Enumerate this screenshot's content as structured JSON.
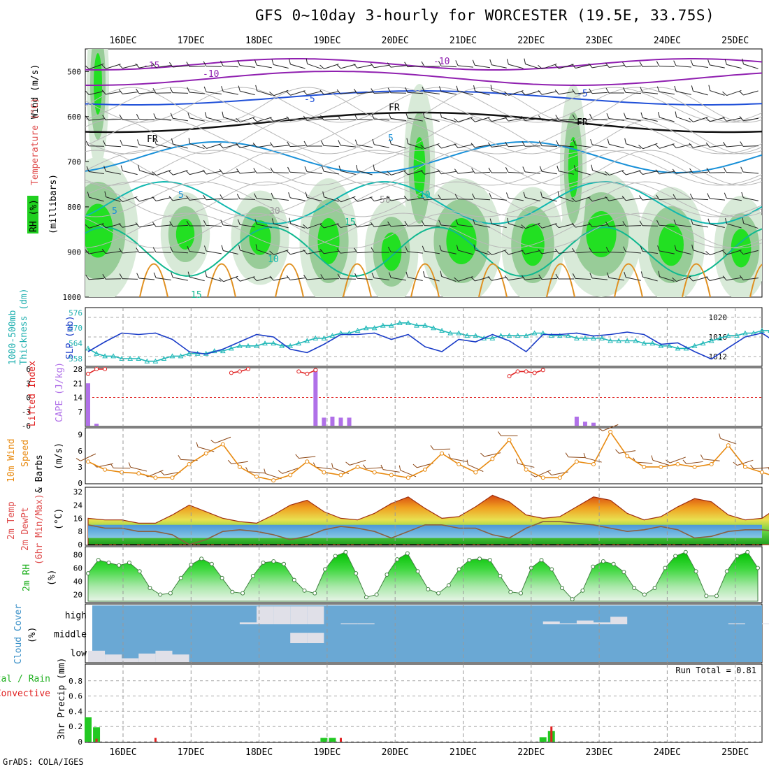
{
  "title": "GFS 0~10day 3-hourly for WORCESTER (19.5E, 33.75S)",
  "credit": "GrADS: COLA/IGES",
  "dates": [
    "16DEC",
    "17DEC",
    "18DEC",
    "19DEC",
    "20DEC",
    "21DEC",
    "22DEC",
    "23DEC",
    "24DEC",
    "25DEC"
  ],
  "colors": {
    "rh": "#00e000",
    "temp": "#e07020",
    "slp": "#1a3cc8",
    "thick": "#20b8b8",
    "cape": "#b070e8",
    "li": "#e02020",
    "wind": "#e88a10",
    "precip_rain": "#22c822",
    "precip_conv": "#e02020",
    "cloud_bg": "#6aa8d4"
  },
  "panels": {
    "upper": {
      "wind_label": "Wind (m/s)",
      "temp_label": "Temperature (°C)",
      "rh_label": "RH (%)",
      "unit_label": "(millibars)",
      "levels": [
        "500",
        "600",
        "700",
        "800",
        "900",
        "1000"
      ],
      "contour_labels": [
        "-15",
        "-10",
        "-10",
        "-5",
        "-5",
        "FR",
        "FR",
        "FR",
        "5",
        "5",
        "5",
        "10",
        "10",
        "15",
        "15",
        "30",
        "50"
      ]
    },
    "slp": {
      "label1": "1000-500mb",
      "label2": "Thickness (dm)",
      "label3": "SLP (mb)",
      "left_ticks": [
        "576",
        "570",
        "564",
        "558"
      ],
      "right_ticks": [
        "1020",
        "1016",
        "1012"
      ]
    },
    "cape": {
      "label1": "Lifted Index",
      "label2": "CAPE (J/kg)",
      "li_ticks": [
        "-6",
        "-3",
        "0",
        "3",
        "6"
      ],
      "cape_ticks": [
        "28",
        "21",
        "14",
        "7"
      ]
    },
    "wind10": {
      "label1": "10m Wind",
      "label2": "Speed",
      "label3": "& Barbs",
      "unit": "(m/s)",
      "ticks": [
        "9",
        "6",
        "3",
        "0"
      ]
    },
    "temp2m": {
      "label1": "2m Temp",
      "label2": "2m DewPt",
      "label3": "(6hr Min/Max)",
      "unit": "(°C)",
      "ticks": [
        "32",
        "24",
        "16",
        "8",
        "0"
      ]
    },
    "rh2m": {
      "label": "2m RH",
      "unit": "(%)",
      "ticks": [
        "80",
        "60",
        "40",
        "20"
      ]
    },
    "cloud": {
      "label": "Cloud Cover",
      "unit": "(%)",
      "levels": [
        "high",
        "middle",
        "low"
      ]
    },
    "precip": {
      "label1": "Total / Rain",
      "label2": "Convective",
      "label3": "3hr Precip (mm)",
      "ticks": [
        "0.8",
        "0.6",
        "0.4",
        "0.2",
        "0"
      ],
      "run_total": "Run Total = 0.81"
    }
  },
  "chart_data": [
    {
      "type": "line",
      "title": "SLP (mb)",
      "x_unit": "forecast hour",
      "x_start": 0,
      "x_step": 6,
      "series": [
        {
          "name": "SLP (mb)",
          "values": [
            1013,
            1015,
            1016.8,
            1016.5,
            1016.8,
            1015.5,
            1013,
            1012.5,
            1013.5,
            1015,
            1016.5,
            1016,
            1013.5,
            1012.8,
            1014.5,
            1016.5,
            1016.5,
            1016.8,
            1015.5,
            1016.5,
            1014,
            1013,
            1015.5,
            1015,
            1016.5,
            1015.2,
            1013,
            1016.5,
            1016.5,
            1016.8,
            1016.2,
            1016.5,
            1017,
            1016.5,
            1014.5,
            1014.8,
            1013,
            1011.5,
            1013.8,
            1016,
            1016.8,
            1014.5,
            1013.2,
            1015.5,
            1017,
            1017,
            1019.5,
            1021.5,
            1021,
            1021.5,
            1020.5,
            1019,
            1016.5,
            1017.5,
            1015.5,
            1013,
            1013.2
          ]
        }
      ],
      "ylim": [
        1010,
        1022
      ]
    },
    {
      "type": "line",
      "title": "1000-500mb Thickness (dm)",
      "x_unit": "forecast hour",
      "x_start": 0,
      "x_step": 3,
      "series": [
        {
          "name": "Thickness (dm)",
          "values": [
            562,
            560,
            559,
            559,
            558,
            558,
            558,
            557,
            557,
            558,
            559,
            559,
            560,
            560,
            560,
            561,
            561,
            562,
            563,
            563,
            563,
            564,
            564,
            563,
            563,
            564,
            565,
            566,
            566,
            567,
            568,
            568,
            569,
            570,
            570,
            571,
            571,
            572,
            572,
            571,
            571,
            570,
            569,
            568,
            568,
            567,
            567,
            566,
            566,
            567,
            567,
            567,
            567,
            568,
            568,
            567,
            567,
            567,
            566,
            566,
            566,
            566,
            565,
            565,
            565,
            565,
            564,
            564,
            563,
            563,
            562,
            562,
            563,
            564,
            565,
            566,
            567,
            567,
            568,
            568,
            569,
            569,
            570,
            570,
            571,
            571,
            572,
            573,
            573,
            572,
            572,
            572,
            572,
            573
          ]
        }
      ],
      "ylim": [
        555,
        578
      ]
    },
    {
      "type": "bar",
      "title": "CAPE (J/kg)",
      "x_unit": "forecast hour",
      "x": [
        0,
        3,
        33,
        81,
        84,
        87,
        90,
        93,
        174,
        177,
        180
      ],
      "values": [
        21,
        1,
        0,
        28,
        4,
        4.5,
        4,
        4,
        4.5,
        2,
        1.5
      ],
      "ylim": [
        0,
        28
      ]
    },
    {
      "type": "line",
      "title": "Lifted Index",
      "x_unit": "forecast hour",
      "x": [
        0,
        3,
        6,
        51,
        54,
        57,
        75,
        78,
        81,
        150,
        153,
        156,
        159,
        162
      ],
      "values": [
        5,
        6,
        6,
        5.2,
        5.5,
        6,
        5.5,
        5,
        5.8,
        4.5,
        5.5,
        5.5,
        5.2,
        5.8
      ],
      "ylim": [
        6,
        -6
      ]
    },
    {
      "type": "line",
      "title": "10m Wind Speed (m/s)",
      "x_unit": "forecast hour",
      "x_start": 0,
      "x_step": 6,
      "series": [
        {
          "name": "10m Wind Speed",
          "values": [
            4,
            2.5,
            2,
            1.8,
            1,
            1,
            3.5,
            5.5,
            7.2,
            3,
            1.2,
            0.5,
            1.5,
            4,
            2,
            1.5,
            3,
            2,
            1.5,
            1,
            2.5,
            5.5,
            3.5,
            2,
            4.5,
            8,
            2.5,
            1,
            1,
            4,
            3.5,
            9.5,
            5,
            3,
            3,
            3.5,
            3,
            3.5,
            7,
            3,
            2,
            1,
            2.5,
            3.5,
            5.5,
            2,
            1,
            3.5,
            4.5,
            6.8,
            6.5,
            3,
            3.5,
            7.5,
            5,
            2,
            0.5
          ]
        }
      ],
      "ylim": [
        0,
        10
      ]
    },
    {
      "type": "area",
      "title": "2m Temp (°C)",
      "x_unit": "forecast hour",
      "x_start": 0,
      "x_step": 6,
      "series": [
        {
          "name": "2m Temp",
          "values": [
            16,
            15,
            15,
            13,
            13,
            18,
            24,
            20,
            16,
            14,
            13,
            18,
            24,
            27,
            20,
            16,
            15,
            19,
            25,
            29,
            22,
            16,
            17,
            23,
            30,
            26,
            18,
            16,
            17,
            23,
            29,
            27,
            19,
            15,
            17,
            23,
            28,
            26,
            18,
            15,
            16,
            23,
            29,
            28,
            18,
            14,
            15,
            20,
            25,
            23,
            16,
            12,
            15,
            22,
            29,
            26,
            16,
            12,
            15,
            20
          ]
        },
        {
          "name": "2m DewPt",
          "values": [
            12,
            10,
            10,
            8,
            8,
            6,
            0,
            3,
            8,
            9,
            8,
            6,
            3,
            5,
            9,
            11,
            10,
            8,
            4,
            8,
            12,
            12,
            10,
            10,
            6,
            4,
            10,
            14,
            14,
            13,
            12,
            10,
            8,
            9,
            11,
            9,
            4,
            5,
            8,
            9,
            9,
            8,
            6,
            4,
            8,
            9,
            9,
            7,
            5,
            7,
            10,
            9,
            8,
            4,
            0,
            8,
            11,
            11,
            11,
            11
          ]
        }
      ],
      "ylim": [
        0,
        34
      ]
    },
    {
      "type": "area",
      "title": "2m RH (%)",
      "x_unit": "forecast hour",
      "x_start": 0,
      "x_step": 6,
      "series": [
        {
          "name": "2m RH",
          "values": [
            52,
            72,
            68,
            64,
            68,
            55,
            30,
            20,
            22,
            45,
            65,
            74,
            66,
            45,
            24,
            22,
            48,
            68,
            70,
            66,
            42,
            26,
            22,
            58,
            78,
            84,
            52,
            16,
            20,
            50,
            73,
            82,
            55,
            28,
            22,
            34,
            58,
            72,
            74,
            72,
            48,
            24,
            22,
            60,
            72,
            58,
            30,
            13,
            26,
            62,
            70,
            66,
            54,
            30,
            20,
            30,
            60,
            78,
            84,
            55,
            18,
            18,
            55,
            78,
            84,
            60
          ]
        }
      ],
      "ylim": [
        10,
        90
      ]
    },
    {
      "type": "table",
      "title": "Cloud Cover (%)",
      "x_unit": "forecast hour",
      "x_start": 0,
      "x_step": 6,
      "series": [
        {
          "name": "high",
          "values": [
            0,
            0,
            0,
            0,
            0,
            0,
            0,
            0,
            0,
            10,
            95,
            95,
            95,
            95,
            0,
            5,
            5,
            0,
            0,
            0,
            0,
            0,
            0,
            0,
            0,
            0,
            0,
            15,
            5,
            20,
            10,
            40,
            0,
            0,
            0,
            0,
            0,
            0,
            5,
            0,
            5,
            0,
            0,
            0,
            0,
            0,
            0,
            0,
            0,
            0,
            0,
            40,
            35,
            40,
            15,
            0,
            20,
            0,
            40,
            60
          ]
        },
        {
          "name": "middle",
          "values": [
            0,
            0,
            0,
            0,
            0,
            0,
            0,
            0,
            0,
            0,
            0,
            0,
            55,
            55,
            0,
            0,
            0,
            0,
            0,
            0,
            0,
            0,
            0,
            0,
            0,
            0,
            0,
            0,
            0,
            0,
            0,
            0,
            0,
            0,
            0,
            0,
            0,
            0,
            0,
            0,
            0,
            0,
            0,
            0,
            0,
            0,
            0,
            0,
            0,
            0,
            0,
            0,
            0,
            0,
            0,
            0,
            0,
            0,
            0,
            0
          ]
        },
        {
          "name": "low",
          "values": [
            60,
            40,
            20,
            45,
            60,
            40,
            0,
            0,
            0,
            0,
            0,
            0,
            0,
            0,
            0,
            0,
            0,
            0,
            0,
            0,
            0,
            0,
            0,
            0,
            0,
            0,
            0,
            0,
            0,
            0,
            0,
            0,
            0,
            0,
            0,
            0,
            0,
            0,
            0,
            0,
            0,
            0,
            0,
            0,
            0,
            0,
            0,
            0,
            0,
            0,
            0,
            0,
            0,
            0,
            0,
            0,
            0,
            0,
            0,
            0
          ]
        }
      ]
    },
    {
      "type": "bar",
      "title": "3hr Precip (mm)",
      "x_unit": "forecast hour",
      "run_total": "Run Total = 0.81",
      "series": [
        {
          "name": "Total / Rain",
          "x": [
            0,
            3,
            84,
            87,
            162,
            165
          ],
          "values": [
            0.32,
            0.19,
            0.05,
            0.05,
            0.06,
            0.14
          ]
        },
        {
          "name": "Convective",
          "x": [
            3,
            24,
            90,
            165
          ],
          "values": [
            0.04,
            0.05,
            0.05,
            0.2
          ]
        }
      ],
      "ylim": [
        0,
        1.0
      ]
    }
  ]
}
